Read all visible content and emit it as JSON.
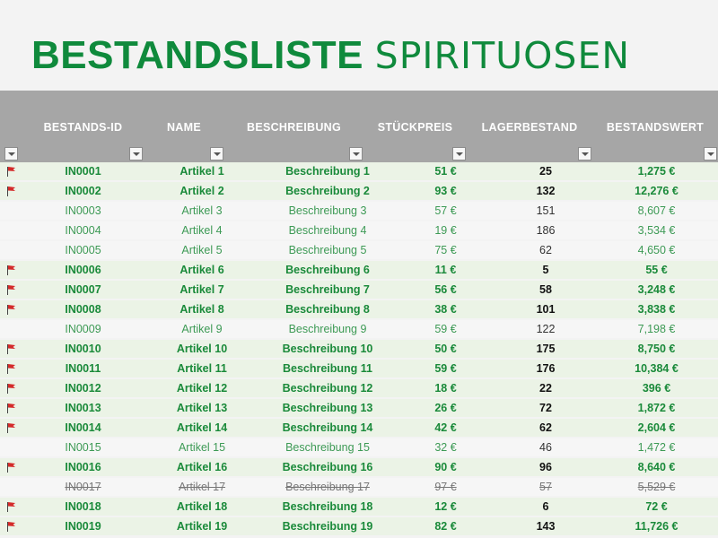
{
  "title": {
    "bold": "BESTANDSLISTE",
    "light": "SPIRITUOSEN"
  },
  "columns": [
    "BESTANDS-ID",
    "NAME",
    "BESCHREIBUNG",
    "STÜCKPREIS",
    "LAGERBESTAND",
    "BESTANDSWERT"
  ],
  "rows": [
    {
      "flag": true,
      "id": "IN0001",
      "name": "Artikel 1",
      "desc": "Beschreibung 1",
      "price": "51 €",
      "stock": "25",
      "value": "1,275 €",
      "status": "active"
    },
    {
      "flag": true,
      "id": "IN0002",
      "name": "Artikel 2",
      "desc": "Beschreibung 2",
      "price": "93 €",
      "stock": "132",
      "value": "12,276 €",
      "status": "active"
    },
    {
      "flag": false,
      "id": "IN0003",
      "name": "Artikel 3",
      "desc": "Beschreibung 3",
      "price": "57 €",
      "stock": "151",
      "value": "8,607 €",
      "status": "inactive"
    },
    {
      "flag": false,
      "id": "IN0004",
      "name": "Artikel 4",
      "desc": "Beschreibung 4",
      "price": "19 €",
      "stock": "186",
      "value": "3,534 €",
      "status": "inactive"
    },
    {
      "flag": false,
      "id": "IN0005",
      "name": "Artikel 5",
      "desc": "Beschreibung 5",
      "price": "75 €",
      "stock": "62",
      "value": "4,650 €",
      "status": "inactive"
    },
    {
      "flag": true,
      "id": "IN0006",
      "name": "Artikel 6",
      "desc": "Beschreibung 6",
      "price": "11 €",
      "stock": "5",
      "value": "55 €",
      "status": "active"
    },
    {
      "flag": true,
      "id": "IN0007",
      "name": "Artikel 7",
      "desc": "Beschreibung 7",
      "price": "56 €",
      "stock": "58",
      "value": "3,248 €",
      "status": "active"
    },
    {
      "flag": true,
      "id": "IN0008",
      "name": "Artikel 8",
      "desc": "Beschreibung 8",
      "price": "38 €",
      "stock": "101",
      "value": "3,838 €",
      "status": "active"
    },
    {
      "flag": false,
      "id": "IN0009",
      "name": "Artikel 9",
      "desc": "Beschreibung 9",
      "price": "59 €",
      "stock": "122",
      "value": "7,198 €",
      "status": "inactive"
    },
    {
      "flag": true,
      "id": "IN0010",
      "name": "Artikel 10",
      "desc": "Beschreibung 10",
      "price": "50 €",
      "stock": "175",
      "value": "8,750 €",
      "status": "active"
    },
    {
      "flag": true,
      "id": "IN0011",
      "name": "Artikel 11",
      "desc": "Beschreibung 11",
      "price": "59 €",
      "stock": "176",
      "value": "10,384 €",
      "status": "active"
    },
    {
      "flag": true,
      "id": "IN0012",
      "name": "Artikel 12",
      "desc": "Beschreibung 12",
      "price": "18 €",
      "stock": "22",
      "value": "396 €",
      "status": "active"
    },
    {
      "flag": true,
      "id": "IN0013",
      "name": "Artikel 13",
      "desc": "Beschreibung 13",
      "price": "26 €",
      "stock": "72",
      "value": "1,872 €",
      "status": "active"
    },
    {
      "flag": true,
      "id": "IN0014",
      "name": "Artikel 14",
      "desc": "Beschreibung 14",
      "price": "42 €",
      "stock": "62",
      "value": "2,604 €",
      "status": "active"
    },
    {
      "flag": false,
      "id": "IN0015",
      "name": "Artikel 15",
      "desc": "Beschreibung 15",
      "price": "32 €",
      "stock": "46",
      "value": "1,472 €",
      "status": "inactive"
    },
    {
      "flag": true,
      "id": "IN0016",
      "name": "Artikel 16",
      "desc": "Beschreibung 16",
      "price": "90 €",
      "stock": "96",
      "value": "8,640 €",
      "status": "active"
    },
    {
      "flag": false,
      "id": "IN0017",
      "name": "Artikel 17",
      "desc": "Beschreibung 17",
      "price": "97 €",
      "stock": "57",
      "value": "5,529 €",
      "status": "strike"
    },
    {
      "flag": true,
      "id": "IN0018",
      "name": "Artikel 18",
      "desc": "Beschreibung 18",
      "price": "12 €",
      "stock": "6",
      "value": "72 €",
      "status": "active"
    },
    {
      "flag": true,
      "id": "IN0019",
      "name": "Artikel 19",
      "desc": "Beschreibung 19",
      "price": "82 €",
      "stock": "143",
      "value": "11,726 €",
      "status": "active"
    }
  ],
  "colors": {
    "accent": "#0f8a3c",
    "header_bg": "#a6a6a6",
    "active_row": "#ebf3e6",
    "inactive_row": "#f6f6f6",
    "flag": "#d42a2a"
  },
  "icons": {
    "flag": "red-flag-icon",
    "filter": "filter-dropdown-icon"
  }
}
